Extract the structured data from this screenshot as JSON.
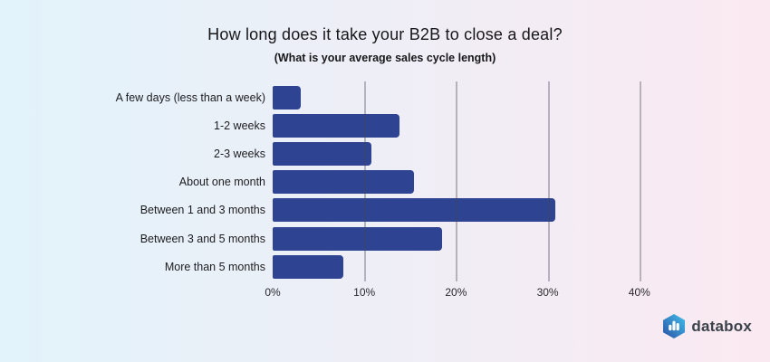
{
  "background": {
    "gradient_left": "#e2f3fb",
    "gradient_right": "#fbe9f1"
  },
  "chart_data": {
    "type": "bar",
    "orientation": "horizontal",
    "title": "How long does it take your B2B to close a deal?",
    "subtitle": "(What is your average sales cycle length)",
    "categories": [
      "A few days (less than a week)",
      "1-2 weeks",
      "2-3 weeks",
      "About one month",
      "Between 1 and 3 months",
      "Between 3 and 5 months",
      "More than 5 months"
    ],
    "values": [
      3.1,
      13.8,
      10.8,
      15.4,
      30.8,
      18.5,
      7.7
    ],
    "value_unit": "%",
    "xlabel": "",
    "ylabel": "",
    "xlim": [
      0,
      45
    ],
    "x_ticks": [
      "0%",
      "10%",
      "20%",
      "30%",
      "40%"
    ],
    "x_tick_values": [
      0,
      10,
      20,
      30,
      40
    ],
    "grid": "vertical",
    "grid_over_bars": true,
    "legend": "none",
    "bar_color": "#2e4492",
    "gridline_color": "rgba(70,70,85,0.35)"
  },
  "branding": {
    "logo_text": "databox",
    "logo_icon": "databox-hexagon-bar-chart-icon",
    "logo_gradient_start": "#2b50a5",
    "logo_gradient_end": "#41c0ea"
  }
}
